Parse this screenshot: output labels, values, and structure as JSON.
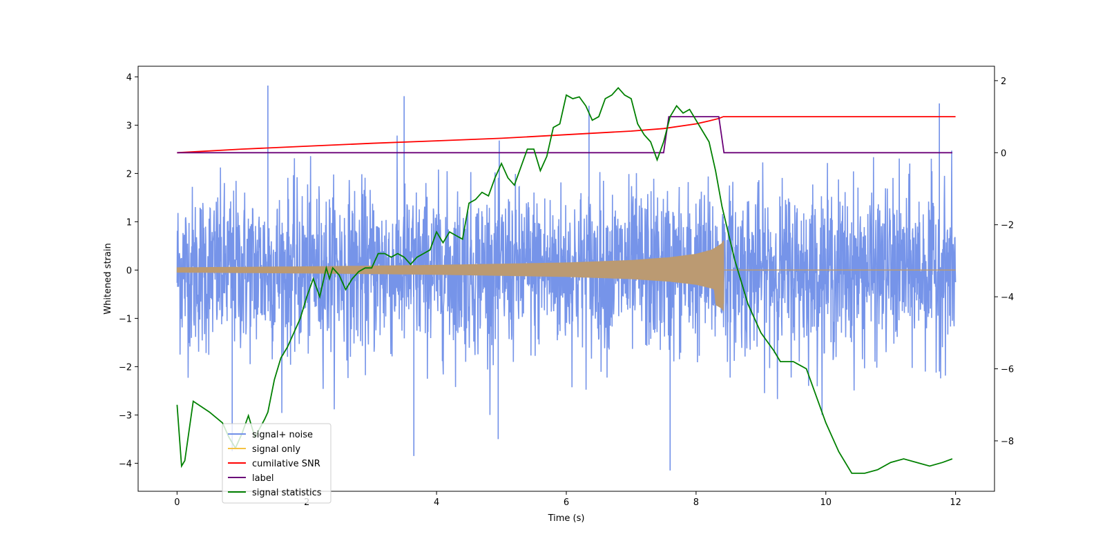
{
  "chart_data": {
    "type": "line",
    "title": "",
    "xlabel": "Time (s)",
    "ylabel": "Whitened strain",
    "y2label": "",
    "xlim": [
      -0.6,
      12.6
    ],
    "ylim": [
      -4.58,
      4.22
    ],
    "y2lim": [
      -9.4,
      2.4
    ],
    "xticks": [
      0,
      2,
      4,
      6,
      8,
      10,
      12
    ],
    "yticks": [
      -4,
      -3,
      -2,
      -1,
      0,
      1,
      2,
      3,
      4
    ],
    "y2ticks": [
      -8,
      -6,
      -4,
      -2,
      0,
      2
    ],
    "legend_position": "lower-left",
    "colors": {
      "noise": "#6f8ee8",
      "signal": "#f5c242",
      "signal_overlap": "#bb9a72",
      "snr": "#ff0000",
      "label": "#6a0078",
      "stats": "#008000"
    },
    "legend": [
      {
        "label": "signal+ noise",
        "color": "#6f8ee8"
      },
      {
        "label": "signal only",
        "color": "#f5c242"
      },
      {
        "label": "cumilative SNR",
        "color": "#ff0000"
      },
      {
        "label": "label",
        "color": "#6a0078"
      },
      {
        "label": "signal statistics",
        "color": "#008000"
      }
    ],
    "series": [
      {
        "name": "signal+ noise",
        "axis": "left",
        "description": "dense whitened strain noise, approx. uniform amplitude about 0 from t=0 to 12",
        "x_range": [
          0,
          12
        ],
        "typical_envelope": [
          -2.2,
          2.3
        ],
        "peaks": [
          [
            1.4,
            3.82
          ],
          [
            7.6,
            -4.15
          ],
          [
            3.65,
            -3.85
          ],
          [
            0.85,
            -3.75
          ],
          [
            4.95,
            -3.5
          ],
          [
            11.75,
            3.45
          ],
          [
            3.5,
            3.6
          ],
          [
            6.35,
            3.4
          ]
        ]
      },
      {
        "name": "signal only",
        "axis": "left",
        "description": "chirp whose envelope grows toward merger at t=8.42, then zero",
        "envelope": [
          [
            0,
            0.05
          ],
          [
            2,
            0.07
          ],
          [
            4,
            0.1
          ],
          [
            6,
            0.15
          ],
          [
            7,
            0.2
          ],
          [
            7.6,
            0.26
          ],
          [
            8.0,
            0.33
          ],
          [
            8.25,
            0.42
          ],
          [
            8.4,
            0.55
          ],
          [
            8.42,
            0.6
          ],
          [
            8.43,
            0.0
          ],
          [
            12,
            0.0
          ]
        ]
      },
      {
        "name": "cumilative SNR",
        "axis": "right",
        "x": [
          0,
          1,
          2,
          3,
          4,
          5,
          6,
          7,
          7.5,
          8.0,
          8.2,
          8.35,
          8.42,
          12
        ],
        "y": [
          0.0,
          0.1,
          0.18,
          0.26,
          0.33,
          0.4,
          0.5,
          0.6,
          0.67,
          0.8,
          0.88,
          0.95,
          1.0,
          1.0
        ]
      },
      {
        "name": "label",
        "axis": "right",
        "x": [
          0,
          7.5,
          7.58,
          8.35,
          8.43,
          11.95
        ],
        "y": [
          0,
          0,
          1,
          1,
          0,
          0
        ]
      },
      {
        "name": "signal statistics",
        "axis": "right",
        "x": [
          0,
          0.07,
          0.12,
          0.25,
          0.5,
          0.7,
          0.8,
          0.9,
          1.0,
          1.1,
          1.2,
          1.35,
          1.4,
          1.5,
          1.6,
          1.7,
          1.8,
          1.9,
          2.0,
          2.1,
          2.2,
          2.3,
          2.35,
          2.4,
          2.5,
          2.6,
          2.7,
          2.8,
          2.9,
          3.0,
          3.1,
          3.2,
          3.3,
          3.4,
          3.5,
          3.6,
          3.7,
          3.8,
          3.9,
          4.0,
          4.1,
          4.2,
          4.3,
          4.4,
          4.5,
          4.6,
          4.7,
          4.8,
          4.9,
          5.0,
          5.1,
          5.2,
          5.3,
          5.4,
          5.5,
          5.6,
          5.7,
          5.8,
          5.9,
          6.0,
          6.1,
          6.2,
          6.3,
          6.4,
          6.5,
          6.6,
          6.7,
          6.8,
          6.9,
          7.0,
          7.1,
          7.2,
          7.3,
          7.4,
          7.5,
          7.6,
          7.7,
          7.8,
          7.9,
          8.0,
          8.1,
          8.2,
          8.3,
          8.4,
          8.6,
          8.8,
          9.0,
          9.2,
          9.3,
          9.4,
          9.5,
          9.6,
          9.7,
          9.8,
          10.0,
          10.2,
          10.4,
          10.6,
          10.8,
          11.0,
          11.2,
          11.4,
          11.6,
          11.8,
          11.95
        ],
        "y": [
          -7.0,
          -8.7,
          -8.55,
          -6.9,
          -7.2,
          -7.5,
          -7.9,
          -8.2,
          -7.8,
          -7.3,
          -7.9,
          -7.4,
          -7.2,
          -6.3,
          -5.7,
          -5.4,
          -5.0,
          -4.6,
          -4.0,
          -3.5,
          -4.0,
          -3.2,
          -3.5,
          -3.2,
          -3.4,
          -3.8,
          -3.5,
          -3.3,
          -3.2,
          -3.2,
          -2.8,
          -2.8,
          -2.9,
          -2.8,
          -2.9,
          -3.1,
          -2.9,
          -2.8,
          -2.7,
          -2.2,
          -2.5,
          -2.2,
          -2.3,
          -2.4,
          -1.4,
          -1.3,
          -1.1,
          -1.2,
          -0.7,
          -0.3,
          -0.7,
          -0.9,
          -0.4,
          0.1,
          0.1,
          -0.5,
          -0.1,
          0.7,
          0.8,
          1.6,
          1.5,
          1.55,
          1.3,
          0.9,
          1.0,
          1.5,
          1.6,
          1.8,
          1.6,
          1.5,
          0.8,
          0.5,
          0.3,
          -0.2,
          0.3,
          1.0,
          1.3,
          1.1,
          1.2,
          0.9,
          0.6,
          0.3,
          -0.5,
          -1.5,
          -3.0,
          -4.2,
          -5.0,
          -5.5,
          -5.8,
          -5.8,
          -5.8,
          -5.9,
          -6.0,
          -6.5,
          -7.5,
          -8.3,
          -8.9,
          -8.9,
          -8.8,
          -8.6,
          -8.5,
          -8.6,
          -8.7,
          -8.6,
          -8.5
        ]
      }
    ]
  }
}
